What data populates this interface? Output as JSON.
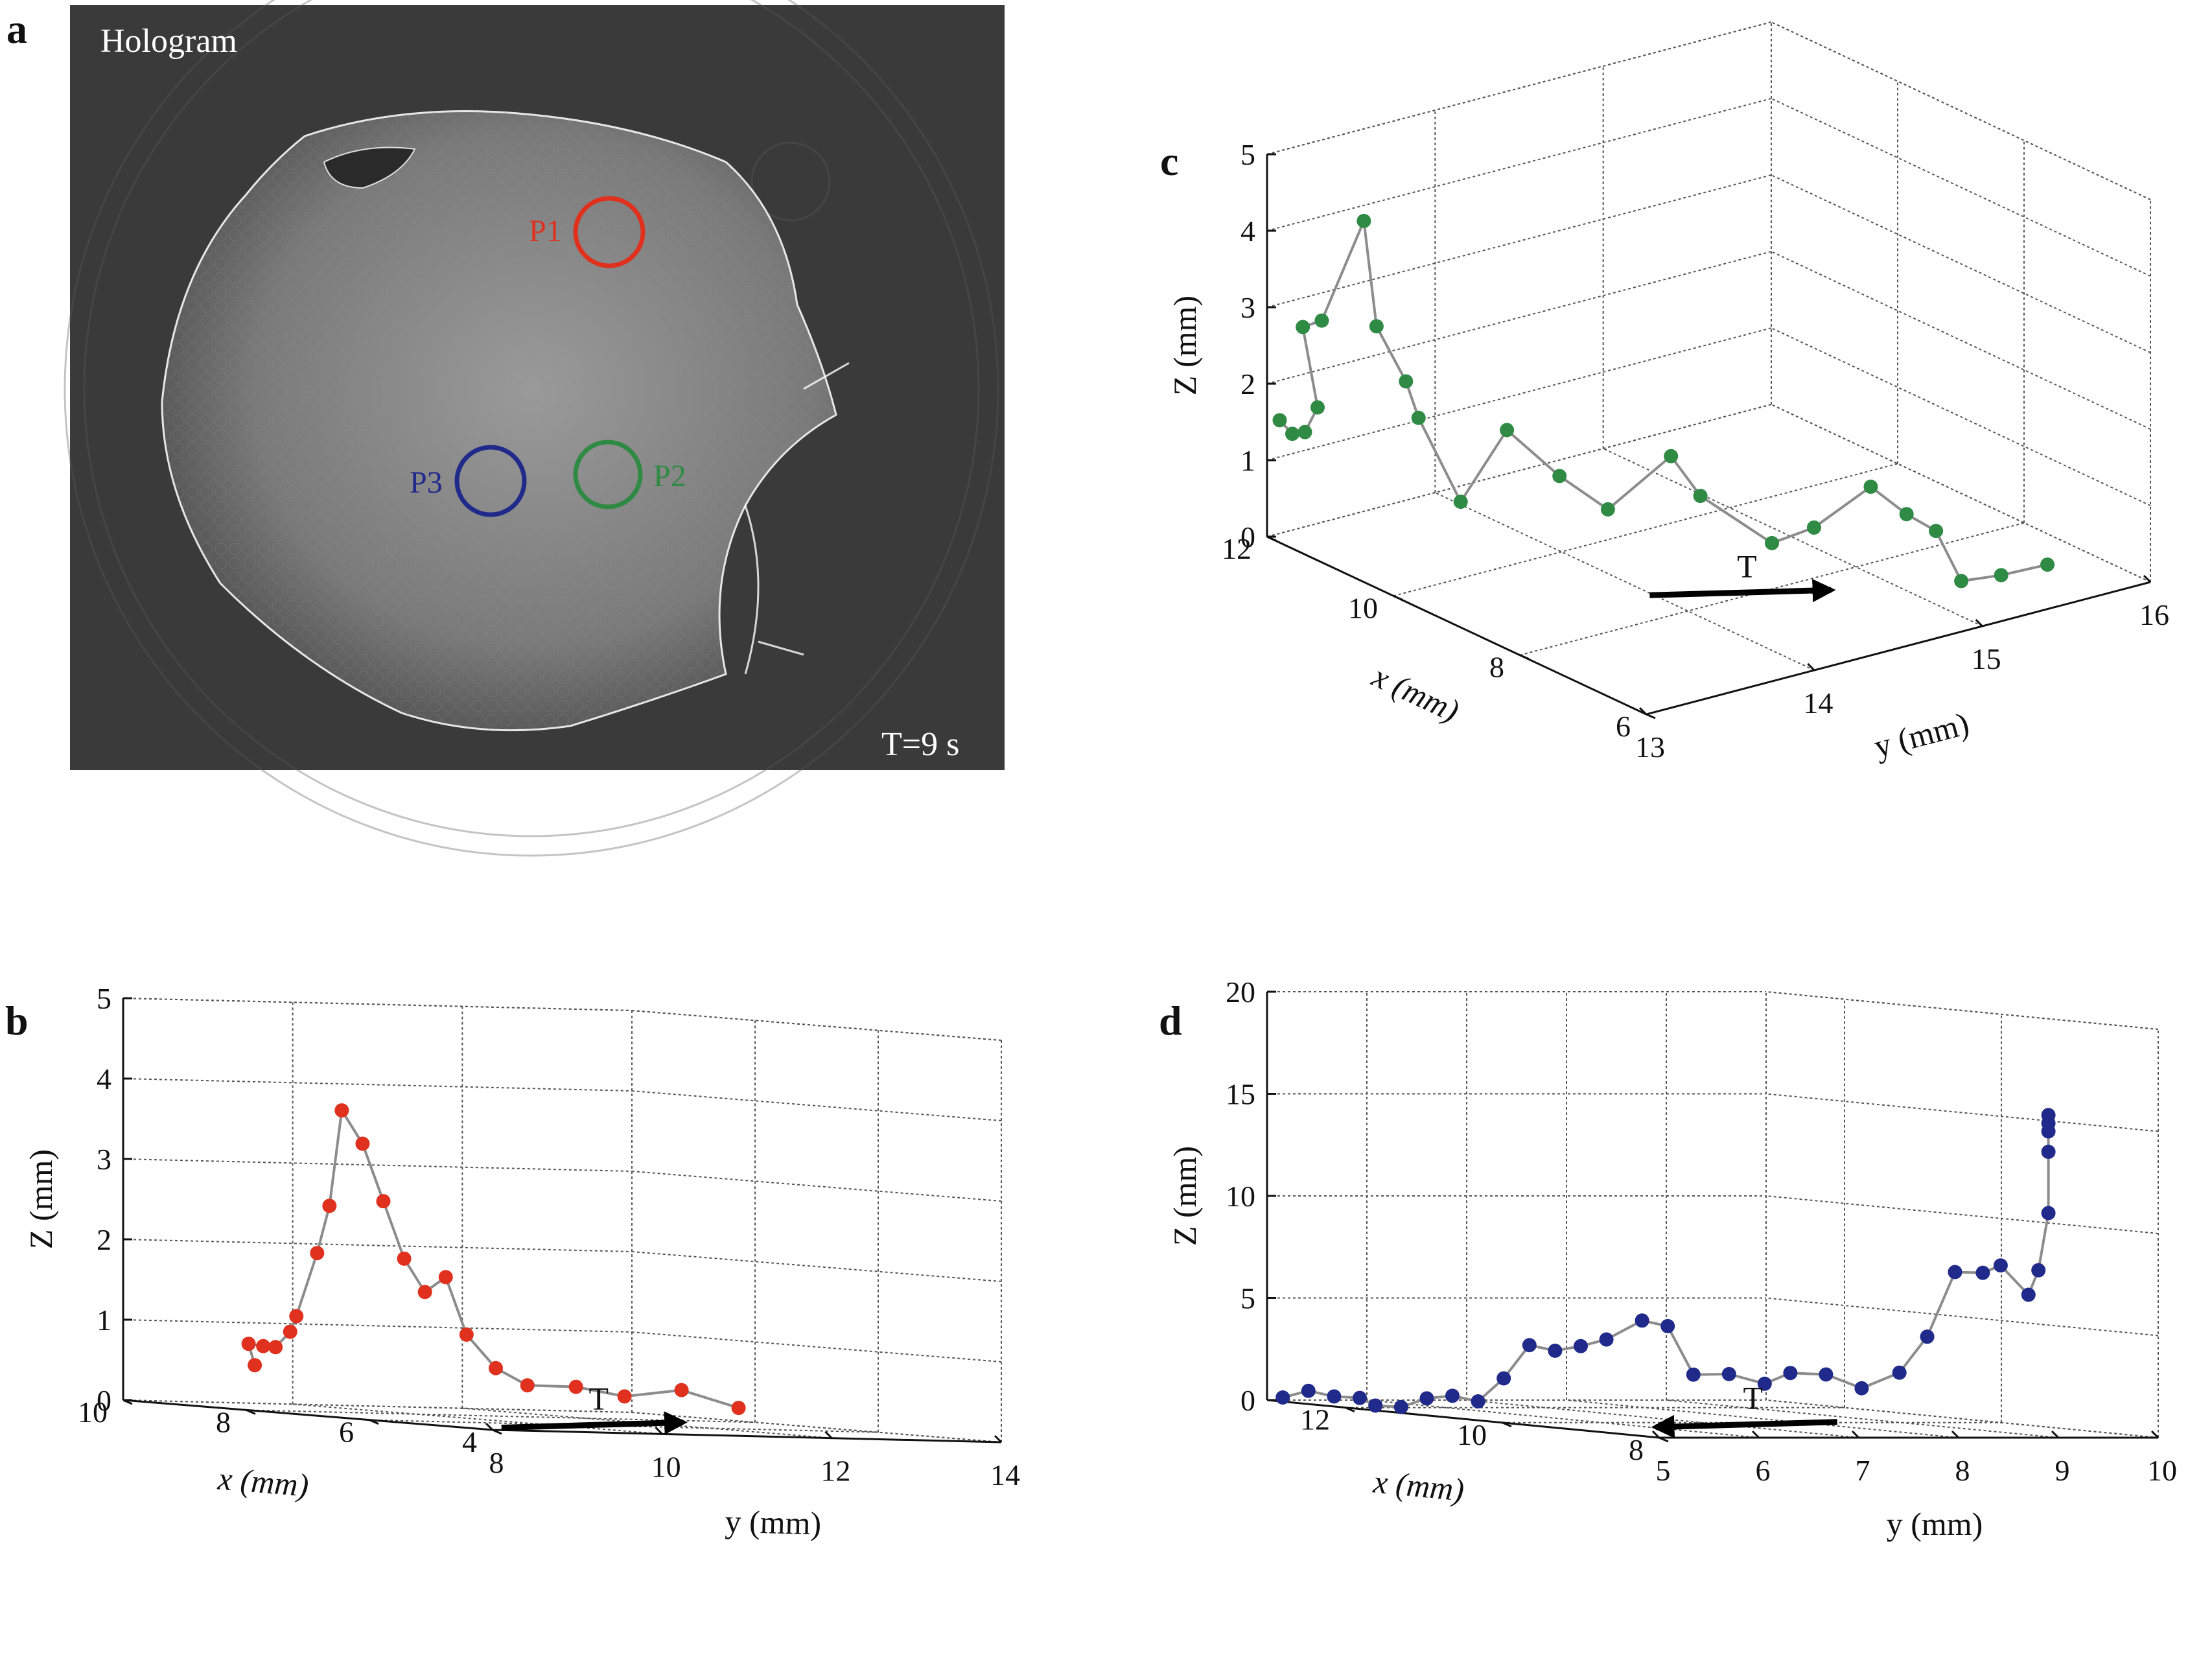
{
  "panels": {
    "a": {
      "letter": "a",
      "title": "Hologram",
      "time_label": "T=9 s",
      "markers": [
        {
          "label": "P1",
          "color": "#e0301e"
        },
        {
          "label": "P2",
          "color": "#2f8a44"
        },
        {
          "label": "P3",
          "color": "#1f2a8a"
        }
      ]
    }
  },
  "chart_data": [
    {
      "id": "b",
      "letter": "b",
      "type": "scatter",
      "projection": "3d",
      "xlabel": "x (mm)",
      "ylabel": "y (mm)",
      "zlabel": "Z (mm)",
      "xlim": [
        4,
        10
      ],
      "ylim": [
        8,
        14
      ],
      "zlim": [
        0,
        5
      ],
      "xticks": [
        4,
        6,
        8,
        10
      ],
      "yticks": [
        8,
        10,
        12,
        14
      ],
      "zticks": [
        0,
        1,
        2,
        3,
        4,
        5
      ],
      "color": "#e0301e",
      "time_arrow": {
        "label": "T",
        "direction": "right"
      },
      "points": [
        {
          "x": 8.0,
          "y": 8.1,
          "z": 0.56
        },
        {
          "x": 8.1,
          "y": 8.1,
          "z": 0.82
        },
        {
          "x": 8.0,
          "y": 8.2,
          "z": 0.8
        },
        {
          "x": 7.8,
          "y": 8.2,
          "z": 0.8
        },
        {
          "x": 7.7,
          "y": 8.3,
          "z": 1.0
        },
        {
          "x": 7.6,
          "y": 8.3,
          "z": 1.2
        },
        {
          "x": 7.4,
          "y": 8.4,
          "z": 2.0
        },
        {
          "x": 7.2,
          "y": 8.4,
          "z": 2.6
        },
        {
          "x": 7.0,
          "y": 8.4,
          "z": 3.8
        },
        {
          "x": 6.8,
          "y": 8.5,
          "z": 3.4
        },
        {
          "x": 6.6,
          "y": 8.6,
          "z": 2.7
        },
        {
          "x": 6.4,
          "y": 8.7,
          "z": 2.0
        },
        {
          "x": 6.2,
          "y": 8.8,
          "z": 1.6
        },
        {
          "x": 6.0,
          "y": 8.9,
          "z": 1.8
        },
        {
          "x": 5.8,
          "y": 9.0,
          "z": 1.1
        },
        {
          "x": 5.6,
          "y": 9.2,
          "z": 0.7
        },
        {
          "x": 5.5,
          "y": 9.5,
          "z": 0.5
        },
        {
          "x": 5.4,
          "y": 10.0,
          "z": 0.5
        },
        {
          "x": 5.3,
          "y": 10.5,
          "z": 0.4
        },
        {
          "x": 5.2,
          "y": 11.1,
          "z": 0.5
        },
        {
          "x": 5.1,
          "y": 11.7,
          "z": 0.3
        }
      ]
    },
    {
      "id": "c",
      "letter": "c",
      "type": "scatter",
      "projection": "3d",
      "xlabel": "x (mm)",
      "ylabel": "y (mm)",
      "zlabel": "Z (mm)",
      "xlim": [
        6,
        12
      ],
      "ylim": [
        13,
        16
      ],
      "zlim": [
        0,
        5
      ],
      "xticks": [
        6,
        8,
        10,
        12
      ],
      "yticks": [
        13,
        14,
        15,
        16
      ],
      "zticks": [
        0,
        1,
        2,
        3,
        4,
        5
      ],
      "color": "#2f8a44",
      "time_arrow": {
        "label": "T",
        "direction": "right"
      },
      "points": [
        {
          "x": 11.8,
          "y": 13.0,
          "z": 1.6
        },
        {
          "x": 11.6,
          "y": 13.0,
          "z": 1.5
        },
        {
          "x": 11.4,
          "y": 13.0,
          "z": 1.6
        },
        {
          "x": 11.2,
          "y": 13.0,
          "z": 2.0
        },
        {
          "x": 11.7,
          "y": 13.1,
          "z": 2.8
        },
        {
          "x": 11.4,
          "y": 13.1,
          "z": 3.0
        },
        {
          "x": 11.0,
          "y": 13.2,
          "z": 4.4
        },
        {
          "x": 10.8,
          "y": 13.2,
          "z": 3.1
        },
        {
          "x": 10.6,
          "y": 13.3,
          "z": 2.4
        },
        {
          "x": 10.4,
          "y": 13.3,
          "z": 2.0
        },
        {
          "x": 10.0,
          "y": 13.4,
          "z": 1.0
        },
        {
          "x": 9.8,
          "y": 13.6,
          "z": 1.9
        },
        {
          "x": 9.5,
          "y": 13.8,
          "z": 1.3
        },
        {
          "x": 9.0,
          "y": 13.9,
          "z": 1.0
        },
        {
          "x": 8.8,
          "y": 14.2,
          "z": 1.6
        },
        {
          "x": 8.6,
          "y": 14.3,
          "z": 1.1
        },
        {
          "x": 8.0,
          "y": 14.5,
          "z": 0.6
        },
        {
          "x": 7.6,
          "y": 14.6,
          "z": 0.9
        },
        {
          "x": 7.5,
          "y": 14.9,
          "z": 1.3
        },
        {
          "x": 7.2,
          "y": 15.0,
          "z": 1.0
        },
        {
          "x": 7.0,
          "y": 15.1,
          "z": 0.8
        },
        {
          "x": 6.6,
          "y": 15.1,
          "z": 0.3
        },
        {
          "x": 6.5,
          "y": 15.3,
          "z": 0.3
        },
        {
          "x": 6.3,
          "y": 15.5,
          "z": 0.4
        }
      ]
    },
    {
      "id": "d",
      "letter": "d",
      "type": "scatter",
      "projection": "3d",
      "xlabel": "x (mm)",
      "ylabel": "y (mm)",
      "zlabel": "Z (mm)",
      "xlim": [
        8,
        13
      ],
      "ylim": [
        5,
        10
      ],
      "zlim": [
        0,
        20
      ],
      "xticks": [
        8,
        10,
        12
      ],
      "yticks": [
        5,
        6,
        7,
        8,
        9,
        10
      ],
      "zticks": [
        0,
        5,
        10,
        15,
        20
      ],
      "color": "#1f2a8a",
      "time_arrow": {
        "label": "T",
        "direction": "left"
      },
      "points": [
        {
          "x": 12.8,
          "y": 5.0,
          "z": 0.2
        },
        {
          "x": 12.6,
          "y": 5.1,
          "z": 0.6
        },
        {
          "x": 12.4,
          "y": 5.2,
          "z": 0.4
        },
        {
          "x": 12.2,
          "y": 5.3,
          "z": 0.4
        },
        {
          "x": 12.0,
          "y": 5.3,
          "z": 0.1
        },
        {
          "x": 11.8,
          "y": 5.4,
          "z": 0.1
        },
        {
          "x": 11.6,
          "y": 5.5,
          "z": 0.6
        },
        {
          "x": 11.4,
          "y": 5.6,
          "z": 0.8
        },
        {
          "x": 11.2,
          "y": 5.7,
          "z": 0.6
        },
        {
          "x": 11.0,
          "y": 5.8,
          "z": 1.8
        },
        {
          "x": 10.8,
          "y": 5.9,
          "z": 3.5
        },
        {
          "x": 10.6,
          "y": 6.0,
          "z": 3.3
        },
        {
          "x": 10.4,
          "y": 6.1,
          "z": 3.6
        },
        {
          "x": 10.2,
          "y": 6.2,
          "z": 4.0
        },
        {
          "x": 10.0,
          "y": 6.4,
          "z": 5.0
        },
        {
          "x": 9.8,
          "y": 6.5,
          "z": 4.8
        },
        {
          "x": 9.6,
          "y": 6.6,
          "z": 2.5
        },
        {
          "x": 9.4,
          "y": 6.8,
          "z": 2.6
        },
        {
          "x": 9.2,
          "y": 7.0,
          "z": 2.2
        },
        {
          "x": 9.0,
          "y": 7.1,
          "z": 2.8
        },
        {
          "x": 8.8,
          "y": 7.3,
          "z": 2.8
        },
        {
          "x": 8.6,
          "y": 7.5,
          "z": 2.2
        },
        {
          "x": 8.5,
          "y": 7.8,
          "z": 3.0
        },
        {
          "x": 8.4,
          "y": 8.0,
          "z": 4.8
        },
        {
          "x": 8.3,
          "y": 8.2,
          "z": 8.0
        },
        {
          "x": 8.2,
          "y": 8.4,
          "z": 8.0
        },
        {
          "x": 8.1,
          "y": 8.5,
          "z": 8.4
        },
        {
          "x": 8.0,
          "y": 8.7,
          "z": 7.0
        },
        {
          "x": 8.0,
          "y": 8.8,
          "z": 8.2
        },
        {
          "x": 8.0,
          "y": 8.9,
          "z": 11.0
        },
        {
          "x": 8.0,
          "y": 8.9,
          "z": 14.0
        },
        {
          "x": 8.0,
          "y": 8.9,
          "z": 15.0
        },
        {
          "x": 8.0,
          "y": 8.9,
          "z": 15.4
        },
        {
          "x": 8.0,
          "y": 8.9,
          "z": 15.8
        }
      ]
    }
  ]
}
